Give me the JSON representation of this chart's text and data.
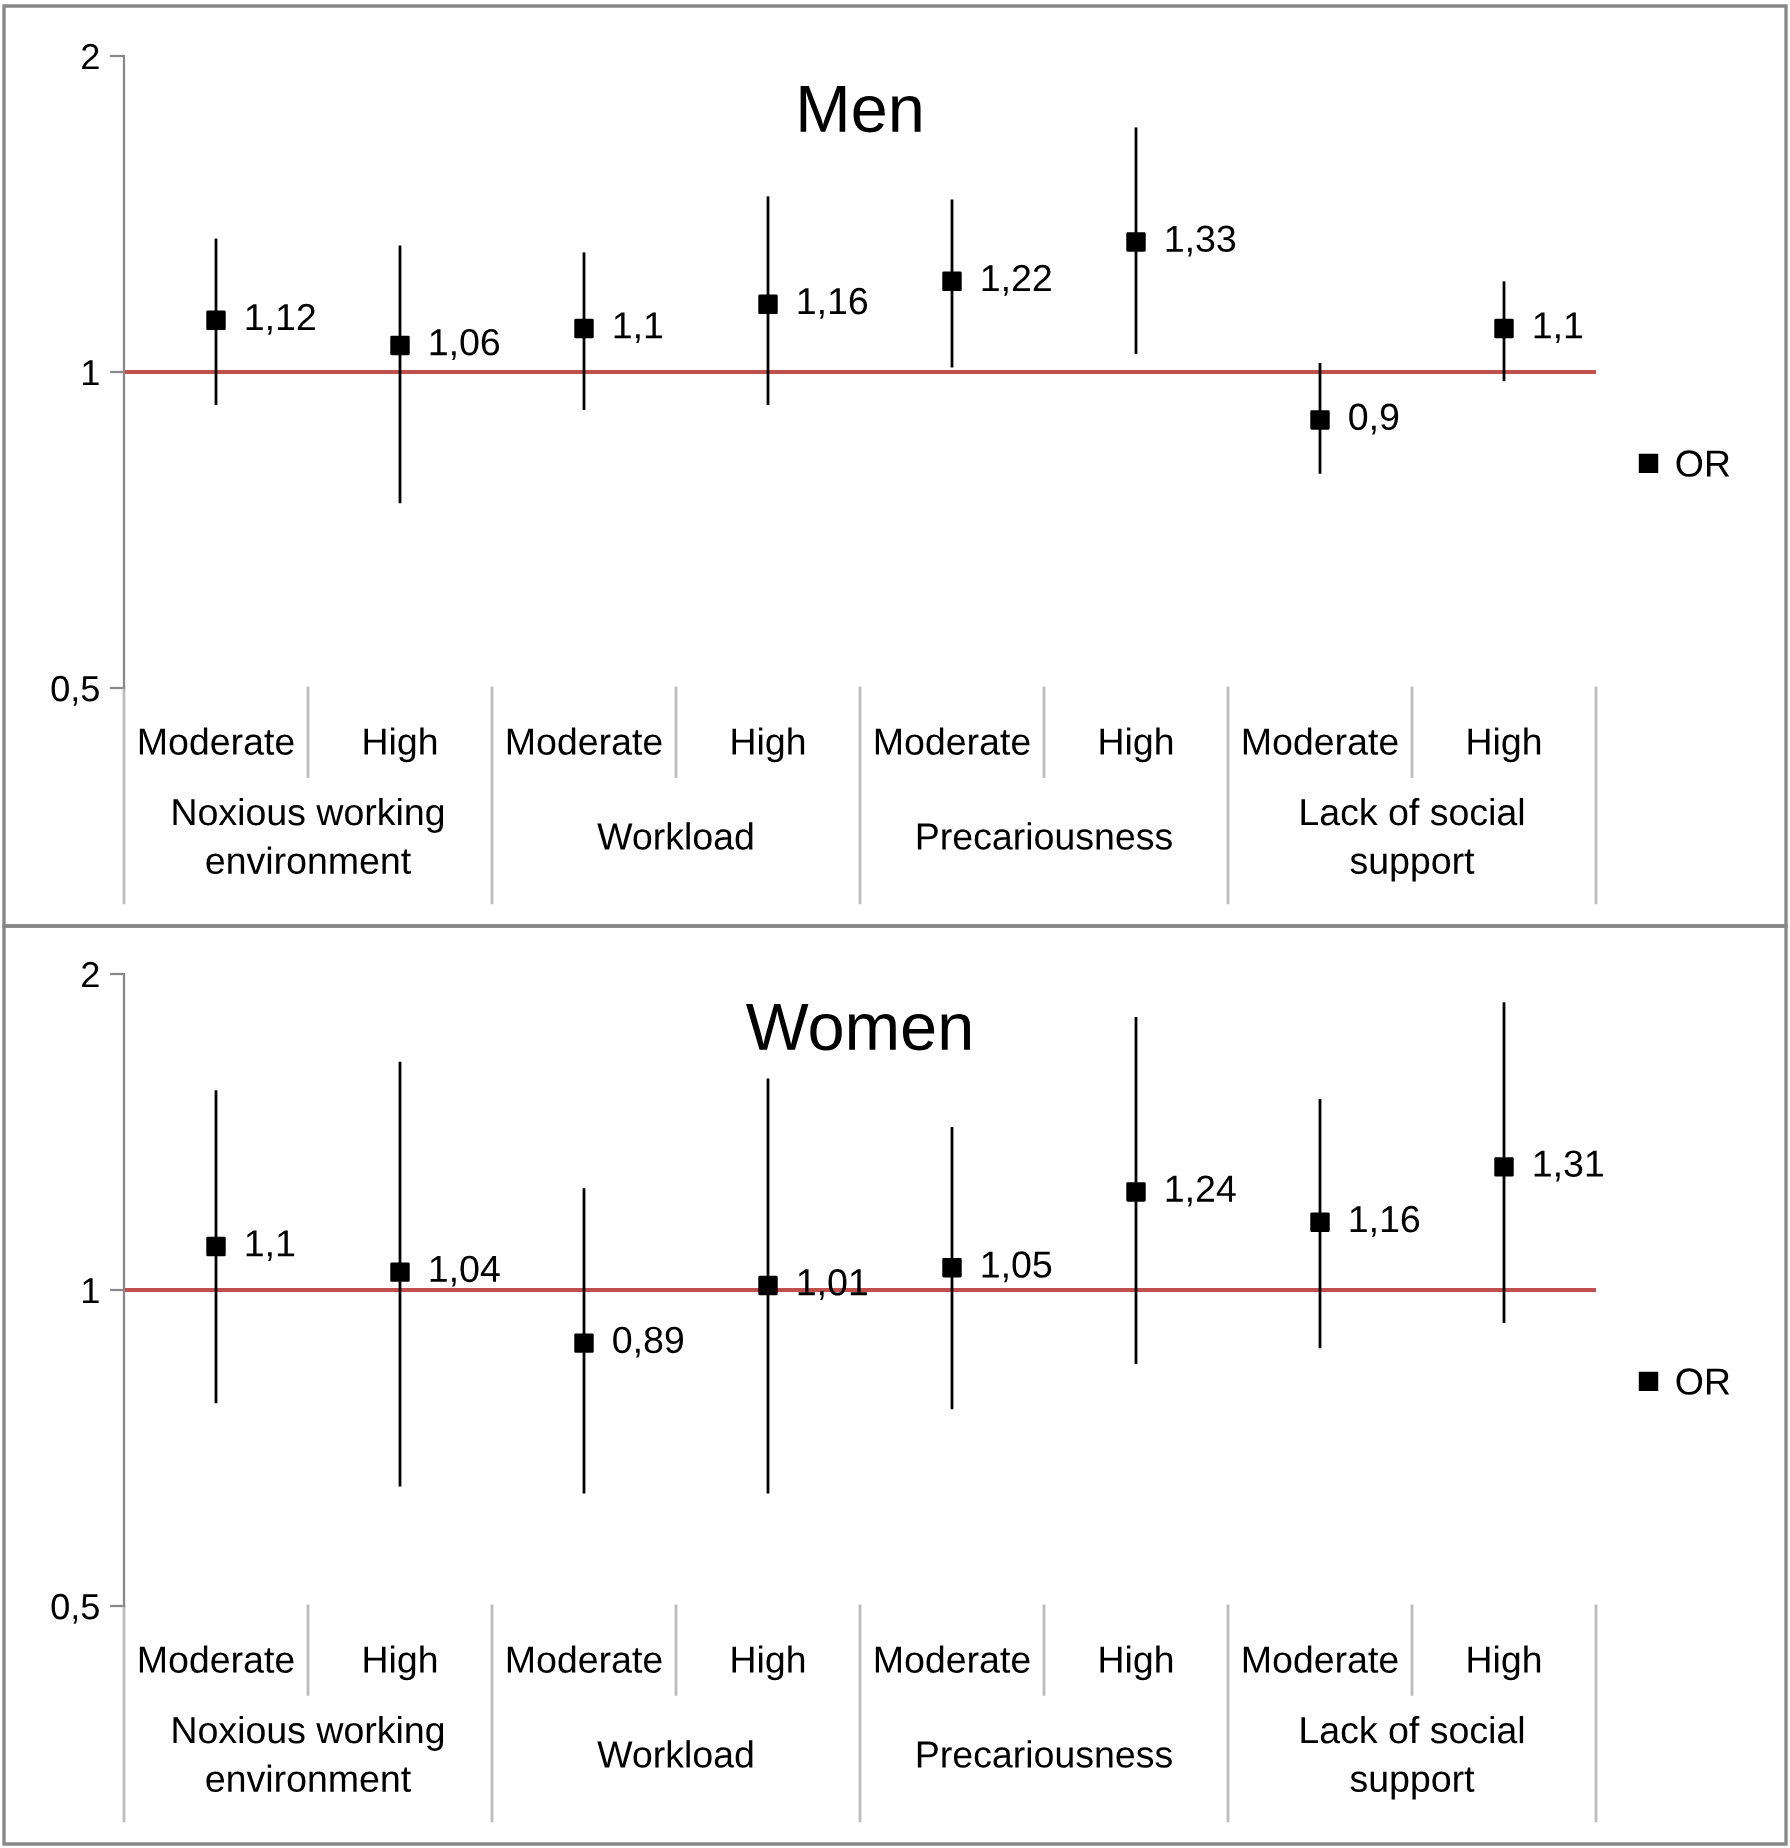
{
  "chart_data": [
    {
      "type": "scatter",
      "title": "Men",
      "categories": [
        "Moderate",
        "High",
        "Moderate",
        "High",
        "Moderate",
        "High",
        "Moderate",
        "High"
      ],
      "annotations": [
        "Noxious working\nenvironment",
        "Workload",
        "Precariousness",
        "Lack of social\nsupport"
      ],
      "series": [
        {
          "name": "OR",
          "color": "#000000",
          "values": [
            1.12,
            1.06,
            1.1,
            1.16,
            1.22,
            1.33,
            0.9,
            1.1
          ],
          "errors": [
            [
              0.93,
              1.34
            ],
            [
              0.75,
              1.32
            ],
            [
              0.92,
              1.3
            ],
            [
              0.93,
              1.47
            ],
            [
              1.01,
              1.46
            ],
            [
              1.04,
              1.71
            ],
            [
              0.8,
              1.02
            ],
            [
              0.98,
              1.22
            ]
          ],
          "value_labels": [
            "1,12",
            "1,06",
            "1,1",
            "1,16",
            "1,22",
            "1,33",
            "0,9",
            "1,1"
          ]
        }
      ],
      "log": "y",
      "ylim": [
        0.5,
        2
      ],
      "yticks": [
        {
          "value": 0.5,
          "label": "0,5"
        },
        1,
        2
      ],
      "ref_lines": [
        {
          "axis": "y",
          "value": 1,
          "color": "#c0504d"
        }
      ],
      "marker": "square",
      "grid": false,
      "legend": "right"
    },
    {
      "type": "scatter",
      "title": "Women",
      "categories": [
        "Moderate",
        "High",
        "Moderate",
        "High",
        "Moderate",
        "High",
        "Moderate",
        "High"
      ],
      "annotations": [
        "Noxious working\nenvironment",
        "Workload",
        "Precariousness",
        "Lack of social\nsupport"
      ],
      "series": [
        {
          "name": "OR",
          "color": "#000000",
          "values": [
            1.1,
            1.04,
            0.89,
            1.01,
            1.05,
            1.24,
            1.16,
            1.31
          ],
          "errors": [
            [
              0.78,
              1.55
            ],
            [
              0.65,
              1.65
            ],
            [
              0.64,
              1.25
            ],
            [
              0.64,
              1.59
            ],
            [
              0.77,
              1.43
            ],
            [
              0.85,
              1.82
            ],
            [
              0.88,
              1.52
            ],
            [
              0.93,
              1.88
            ]
          ],
          "value_labels": [
            "1,1",
            "1,04",
            "0,89",
            "1,01",
            "1,05",
            "1,24",
            "1,16",
            "1,31"
          ]
        }
      ],
      "log": "y",
      "ylim": [
        0.5,
        2
      ],
      "yticks": [
        {
          "value": 0.5,
          "label": "0,5"
        },
        1,
        2
      ],
      "ref_lines": [
        {
          "axis": "y",
          "value": 1,
          "color": "#c0504d"
        }
      ],
      "marker": "square",
      "grid": false,
      "legend": "right"
    }
  ]
}
